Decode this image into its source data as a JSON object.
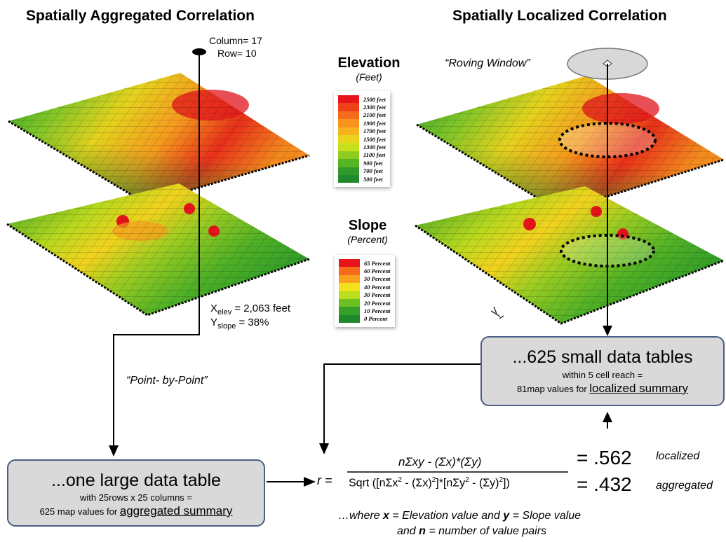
{
  "headings": {
    "left": "Spatially Aggregated  Correlation",
    "right": "Spatially Localized Correlation"
  },
  "probe": {
    "column": "Column= 17",
    "row": "Row= 10"
  },
  "roving_window": "“Roving Window”",
  "values_readout": {
    "x_main": "X",
    "x_sub": "elev",
    "x_val": " = 2,063 feet",
    "y_main": "Y",
    "y_sub": "slope",
    "y_val": " = 38%"
  },
  "point_by_point": "“Point- by-Point”",
  "elevation_legend": {
    "title": "Elevation",
    "subtitle": "(Feet)",
    "labels": [
      "2500 feet",
      "2300 feet",
      "2100 feet",
      "1900 feet",
      "1700 feet",
      "1500 feet",
      "1300 feet",
      "1100 feet",
      "900 feet",
      "700 feet",
      "500 feet"
    ],
    "colors": [
      "#e8141c",
      "#f0401a",
      "#f56b1c",
      "#f9931e",
      "#f7b21e",
      "#e9d51e",
      "#c8e01c",
      "#8fcc20",
      "#55b424",
      "#2f9a2a",
      "#1e8a2c"
    ]
  },
  "slope_legend": {
    "title": "Slope",
    "subtitle": "(Percent)",
    "labels": [
      "65 Percent",
      "60 Percent",
      "50 Percent",
      "40 Percent",
      "30 Percent",
      "20 Percent",
      "10 Percent",
      "0 Percent"
    ],
    "colors": [
      "#e8141c",
      "#f56b1c",
      "#f9a11e",
      "#f2e21e",
      "#bcdc1e",
      "#6cc022",
      "#36a02a",
      "#1e8a2c"
    ]
  },
  "large_table": {
    "title": "...one large data table",
    "line1": "with 25rows x 25 columns =",
    "line2_prefix": "625 map values for ",
    "line2_link": "aggregated summary"
  },
  "small_tables": {
    "title": "...625 small data tables",
    "line1": "within 5 cell reach =",
    "line2_prefix": "81map values for  ",
    "line2_link": "localized summary"
  },
  "formula": {
    "lhs": "r =",
    "numerator": "nΣxy - (Σx)*(Σy)",
    "den_a": "Sqrt ([nΣx",
    "den_b": "2",
    "den_c": " - (Σx)",
    "den_d": "2",
    "den_e": "]*[nΣy",
    "den_f": "2",
    "den_g": " - (Σy)",
    "den_h": "2",
    "den_i": "])"
  },
  "results": {
    "localized_value": "= .562",
    "localized_label": "localized",
    "aggregated_value": "= .432",
    "aggregated_label": "aggregated"
  },
  "footnote": {
    "l1a": "…where ",
    "l1b": "x",
    "l1c": " = Elevation value and ",
    "l1d": "y",
    "l1e": " = Slope value",
    "l2a": "and ",
    "l2b": "n",
    "l2c": " = number of value pairs"
  }
}
